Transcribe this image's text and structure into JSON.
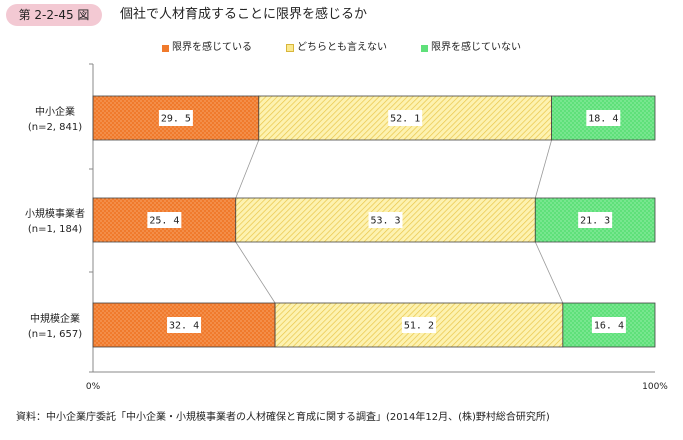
{
  "figure": {
    "number": "第 2-2-45 図",
    "title": "個社で人材育成することに限界を感じるか"
  },
  "source": "資料：中小企業庁委託「中小企業・小規模事業者の人材確保と育成に関する調査」(2014年12月、(株)野村総合研究所)",
  "chart_data": {
    "type": "bar",
    "orientation": "horizontal",
    "stacked": true,
    "categories": [
      {
        "name": "中小企業",
        "n": "(n=2, 841)"
      },
      {
        "name": "小規模事業者",
        "n": "(n=1, 184)"
      },
      {
        "name": "中規模企業",
        "n": "(n=1, 657)"
      }
    ],
    "series": [
      {
        "name": "限界を感じている",
        "values": [
          29.5,
          25.4,
          32.4
        ],
        "color": "#f07a2c",
        "pattern": "dots"
      },
      {
        "name": "どちらとも言えない",
        "values": [
          52.1,
          53.3,
          51.2
        ],
        "color": "#fbe98f",
        "pattern": "diagonal"
      },
      {
        "name": "限界を感じていない",
        "values": [
          18.4,
          21.3,
          16.4
        ],
        "color": "#5fe07a",
        "pattern": "dots"
      }
    ],
    "value_labels": [
      [
        "29. 5",
        "52. 1",
        "18. 4"
      ],
      [
        "25. 4",
        "53. 3",
        "21. 3"
      ],
      [
        "32. 4",
        "51. 2",
        "16. 4"
      ]
    ],
    "x_axis": {
      "min": 0,
      "max": 100,
      "tick_labels": [
        "0%",
        "100%"
      ]
    },
    "series_connectors": true,
    "legend_position": "top-center"
  }
}
